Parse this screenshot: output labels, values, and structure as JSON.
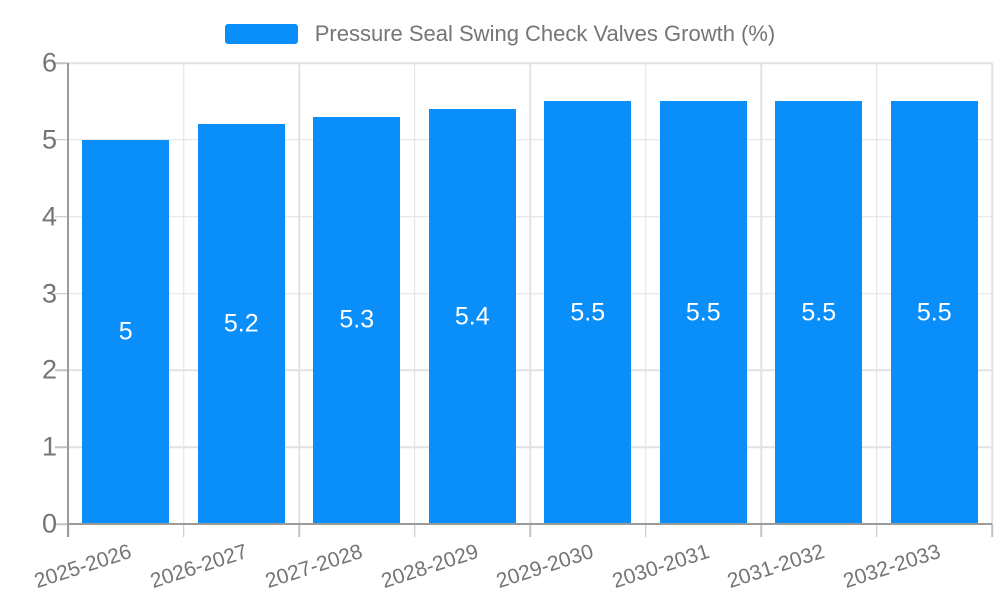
{
  "legend": {
    "position": "top"
  },
  "colors": {
    "bar": "#0a8ef9",
    "axis_text": "#757575",
    "axis_line": "#9b9b9b",
    "grid_line": "#e2e2e2",
    "data_label": "#ffffff",
    "background": "#ffffff"
  },
  "chart_data": {
    "type": "bar",
    "title": "",
    "xlabel": "",
    "ylabel": "",
    "categories": [
      "2025-2026",
      "2026-2027",
      "2027-2028",
      "2028-2029",
      "2029-2030",
      "2030-2031",
      "2031-2032",
      "2032-2033"
    ],
    "series": [
      {
        "name": "Pressure Seal Swing Check Valves Growth (%)",
        "values": [
          5,
          5.2,
          5.3,
          5.4,
          5.5,
          5.5,
          5.5,
          5.5
        ]
      }
    ],
    "data_labels": [
      "5",
      "5.2",
      "5.3",
      "5.4",
      "5.5",
      "5.5",
      "5.5",
      "5.5"
    ],
    "ylim": [
      0,
      6
    ],
    "yticks": [
      0,
      1,
      2,
      3,
      4,
      5,
      6
    ],
    "grid": true,
    "legend_position": "top",
    "bar_color": "#0a8ef9"
  }
}
